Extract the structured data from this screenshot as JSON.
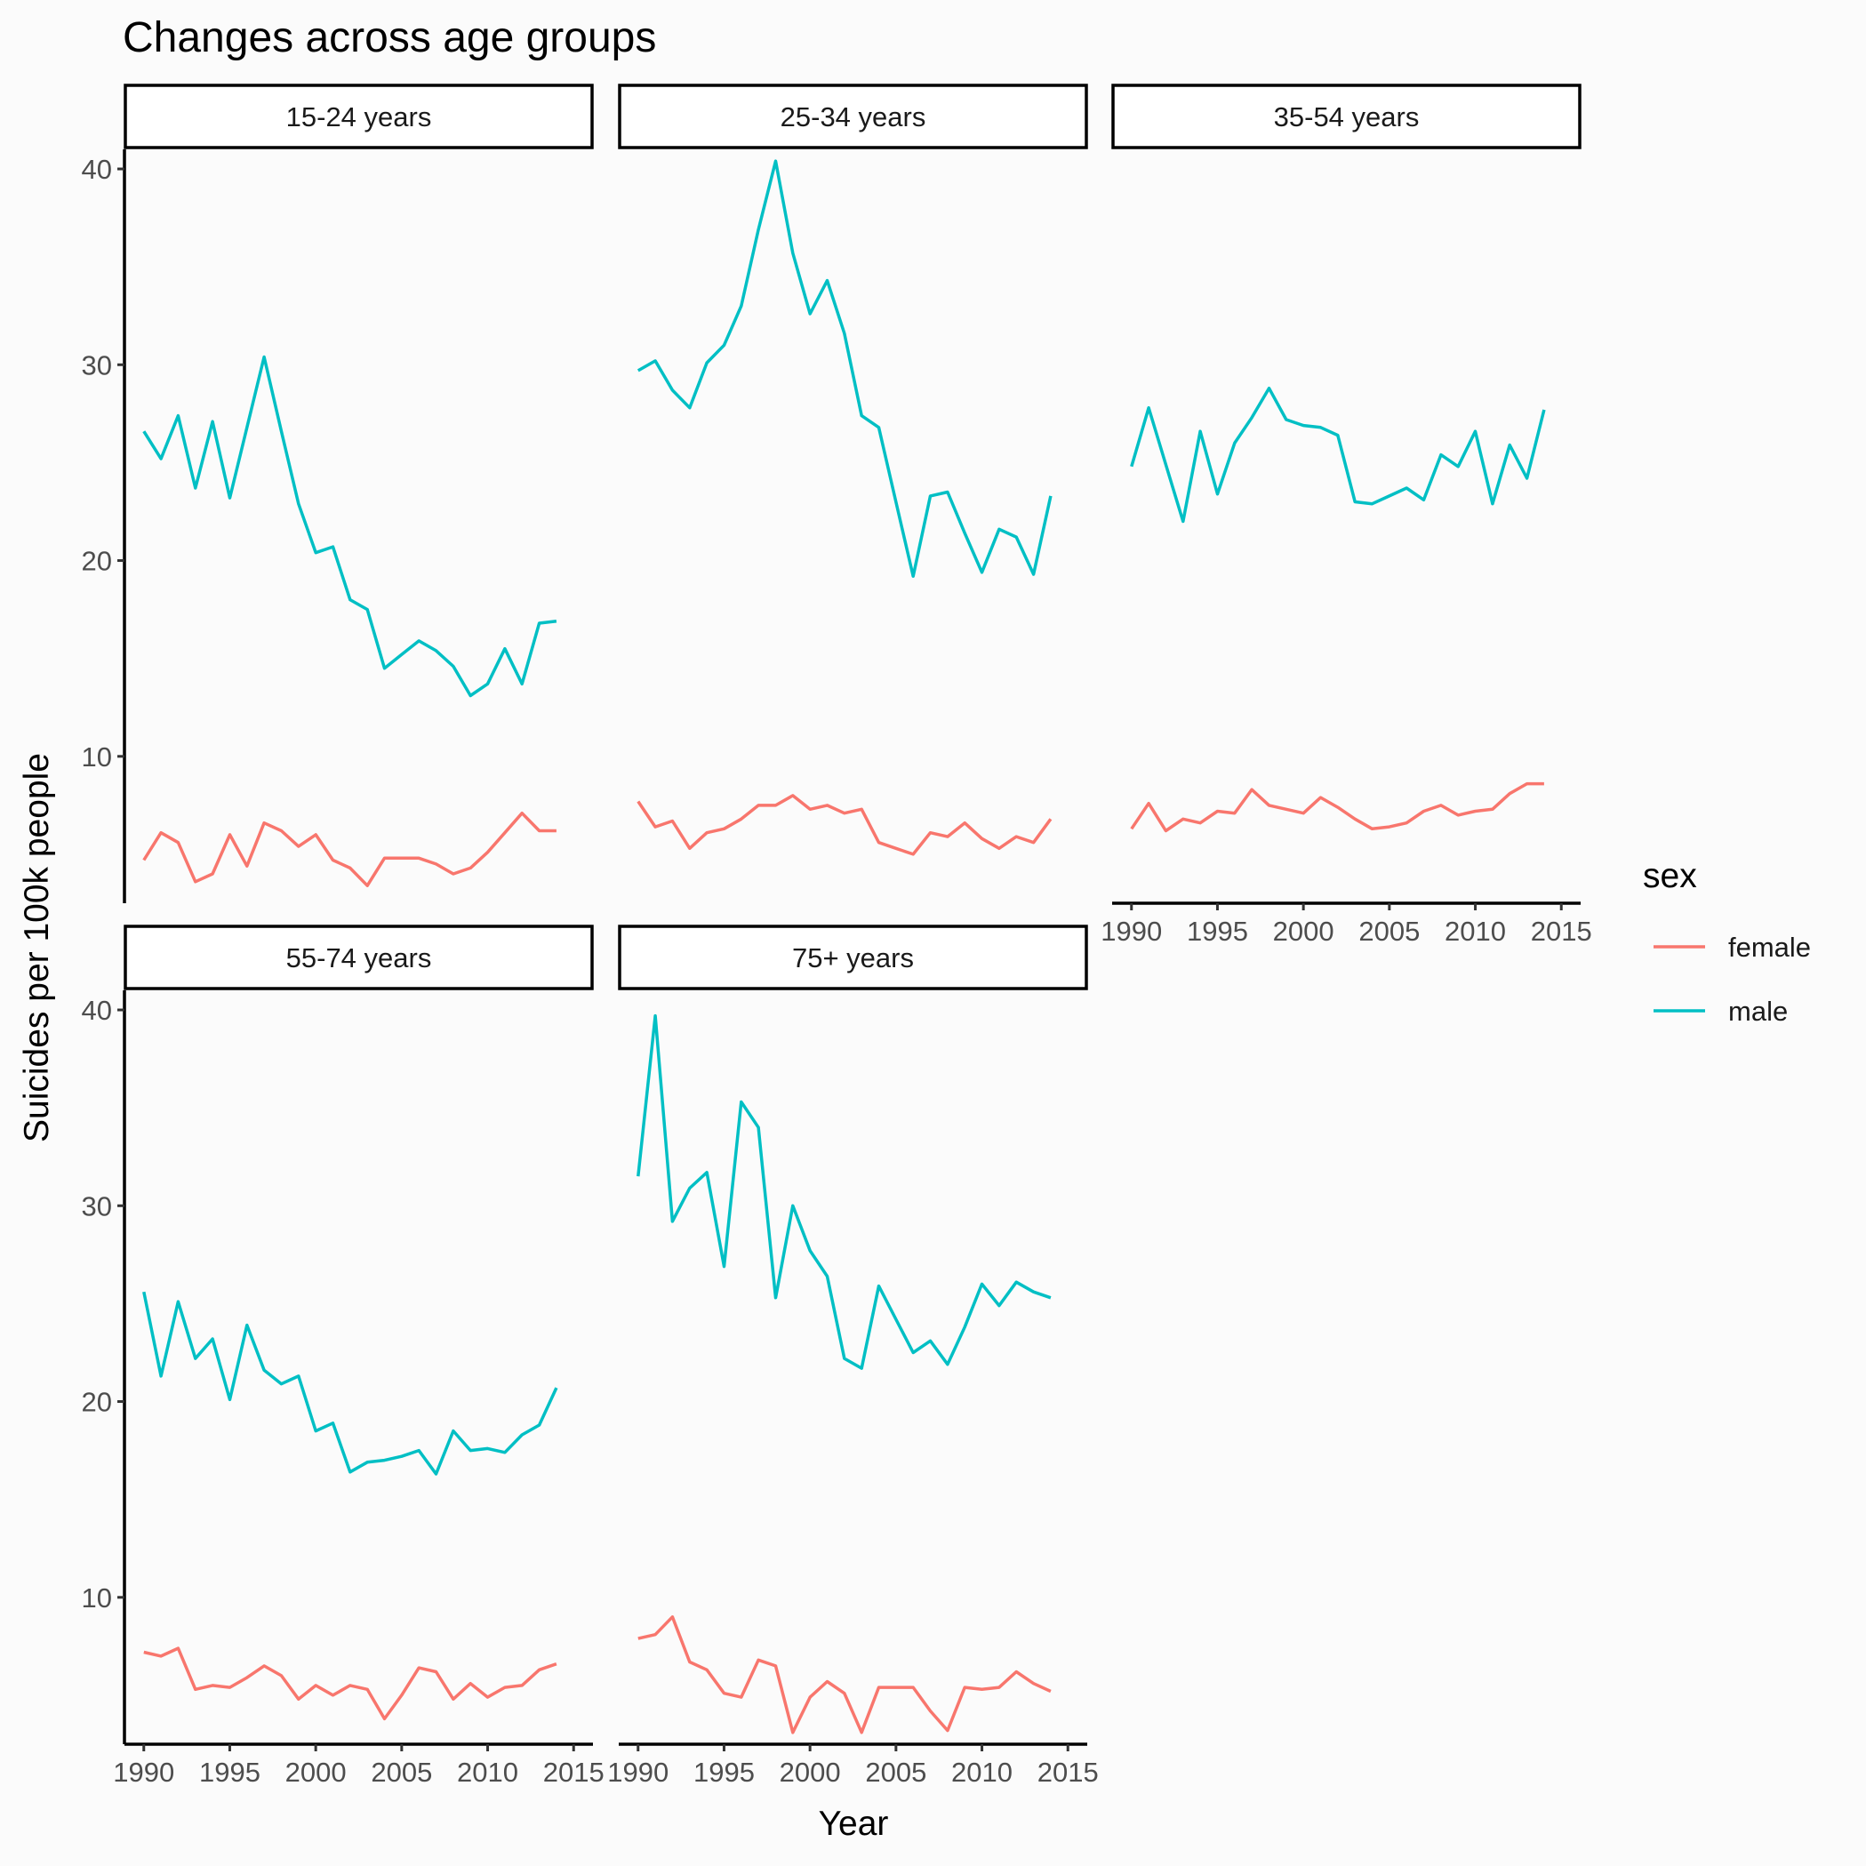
{
  "chart_data": {
    "type": "line",
    "title": "Changes across age groups",
    "xlabel": "Year",
    "ylabel": "Suicides per 100k people",
    "xlim": [
      1990,
      2015
    ],
    "ylim": [
      2.5,
      41
    ],
    "x_ticks": [
      1990,
      1995,
      2000,
      2005,
      2010,
      2015
    ],
    "y_ticks": [
      10,
      20,
      30,
      40
    ],
    "legend": {
      "title": "sex",
      "position": "right",
      "entries": [
        {
          "label": "female",
          "color": "#F8766D"
        },
        {
          "label": "male",
          "color": "#00BFC4"
        }
      ]
    },
    "x": [
      1990,
      1991,
      1992,
      1993,
      1994,
      1995,
      1996,
      1997,
      1998,
      1999,
      2000,
      2001,
      2002,
      2003,
      2004,
      2005,
      2006,
      2007,
      2008,
      2009,
      2010,
      2011,
      2012,
      2013,
      2014
    ],
    "panels": [
      {
        "strip": "15-24 years",
        "series": [
          {
            "name": "female",
            "values": [
              4.7,
              6.1,
              5.6,
              3.6,
              4.0,
              6.0,
              4.4,
              6.6,
              6.2,
              5.4,
              6.0,
              4.7,
              4.3,
              3.4,
              4.8,
              4.8,
              4.8,
              4.5,
              4.0,
              4.3,
              5.1,
              6.1,
              7.1,
              6.2,
              6.2
            ]
          },
          {
            "name": "male",
            "values": [
              26.6,
              25.2,
              27.4,
              23.7,
              27.1,
              23.2,
              26.8,
              30.4,
              26.6,
              22.9,
              20.4,
              20.7,
              18.0,
              17.5,
              14.5,
              15.2,
              15.9,
              15.4,
              14.6,
              13.1,
              13.7,
              15.5,
              13.7,
              16.8,
              16.9
            ]
          }
        ]
      },
      {
        "strip": "25-34 years",
        "series": [
          {
            "name": "female",
            "values": [
              7.7,
              6.4,
              6.7,
              5.3,
              6.1,
              6.3,
              6.8,
              7.5,
              7.5,
              8.0,
              7.3,
              7.5,
              7.1,
              7.3,
              5.6,
              5.3,
              5.0,
              6.1,
              5.9,
              6.6,
              5.8,
              5.3,
              5.9,
              5.6,
              6.8
            ]
          },
          {
            "name": "male",
            "values": [
              29.7,
              30.2,
              28.7,
              27.8,
              30.1,
              31.0,
              33.0,
              36.9,
              40.4,
              35.7,
              32.6,
              34.3,
              31.6,
              27.4,
              26.8,
              23.0,
              19.2,
              23.3,
              23.5,
              21.4,
              19.4,
              21.6,
              21.2,
              19.3,
              23.3
            ]
          }
        ]
      },
      {
        "strip": "35-54 years",
        "series": [
          {
            "name": "female",
            "values": [
              6.3,
              7.6,
              6.2,
              6.8,
              6.6,
              7.2,
              7.1,
              8.3,
              7.5,
              7.3,
              7.1,
              7.9,
              7.4,
              6.8,
              6.3,
              6.4,
              6.6,
              7.2,
              7.5,
              7.0,
              7.2,
              7.3,
              8.1,
              8.6,
              8.6
            ]
          },
          {
            "name": "male",
            "values": [
              24.8,
              27.8,
              24.9,
              22.0,
              26.6,
              23.4,
              26.0,
              27.3,
              28.8,
              27.2,
              26.9,
              26.8,
              26.4,
              23.0,
              22.9,
              23.3,
              23.7,
              23.1,
              25.4,
              24.8,
              26.6,
              22.9,
              25.9,
              24.2,
              27.7
            ]
          }
        ]
      },
      {
        "strip": "55-74 years",
        "series": [
          {
            "name": "female",
            "values": [
              7.2,
              7.0,
              7.4,
              5.3,
              5.5,
              5.4,
              5.9,
              6.5,
              6.0,
              4.8,
              5.5,
              5.0,
              5.5,
              5.3,
              3.8,
              5.0,
              6.4,
              6.2,
              4.8,
              5.6,
              4.9,
              5.4,
              5.5,
              6.3,
              6.6
            ]
          },
          {
            "name": "male",
            "values": [
              25.6,
              21.3,
              25.1,
              22.2,
              23.2,
              20.1,
              23.9,
              21.6,
              20.9,
              21.3,
              18.5,
              18.9,
              16.4,
              16.9,
              17.0,
              17.2,
              17.5,
              16.3,
              18.5,
              17.5,
              17.6,
              17.4,
              18.3,
              18.8,
              20.7
            ]
          }
        ]
      },
      {
        "strip": "75+ years",
        "series": [
          {
            "name": "female",
            "values": [
              7.9,
              8.1,
              9.0,
              6.7,
              6.3,
              5.1,
              4.9,
              6.8,
              6.5,
              3.1,
              4.9,
              5.7,
              5.1,
              3.1,
              5.4,
              5.4,
              5.4,
              4.2,
              3.2,
              5.4,
              5.3,
              5.4,
              6.2,
              5.6,
              5.2
            ]
          },
          {
            "name": "male",
            "values": [
              31.5,
              39.7,
              29.2,
              30.9,
              31.7,
              26.9,
              35.3,
              34.0,
              25.3,
              30.0,
              27.7,
              26.4,
              22.2,
              21.7,
              25.9,
              24.2,
              22.5,
              23.1,
              21.9,
              23.8,
              26.0,
              24.9,
              26.1,
              25.6,
              25.3
            ]
          }
        ]
      }
    ]
  }
}
